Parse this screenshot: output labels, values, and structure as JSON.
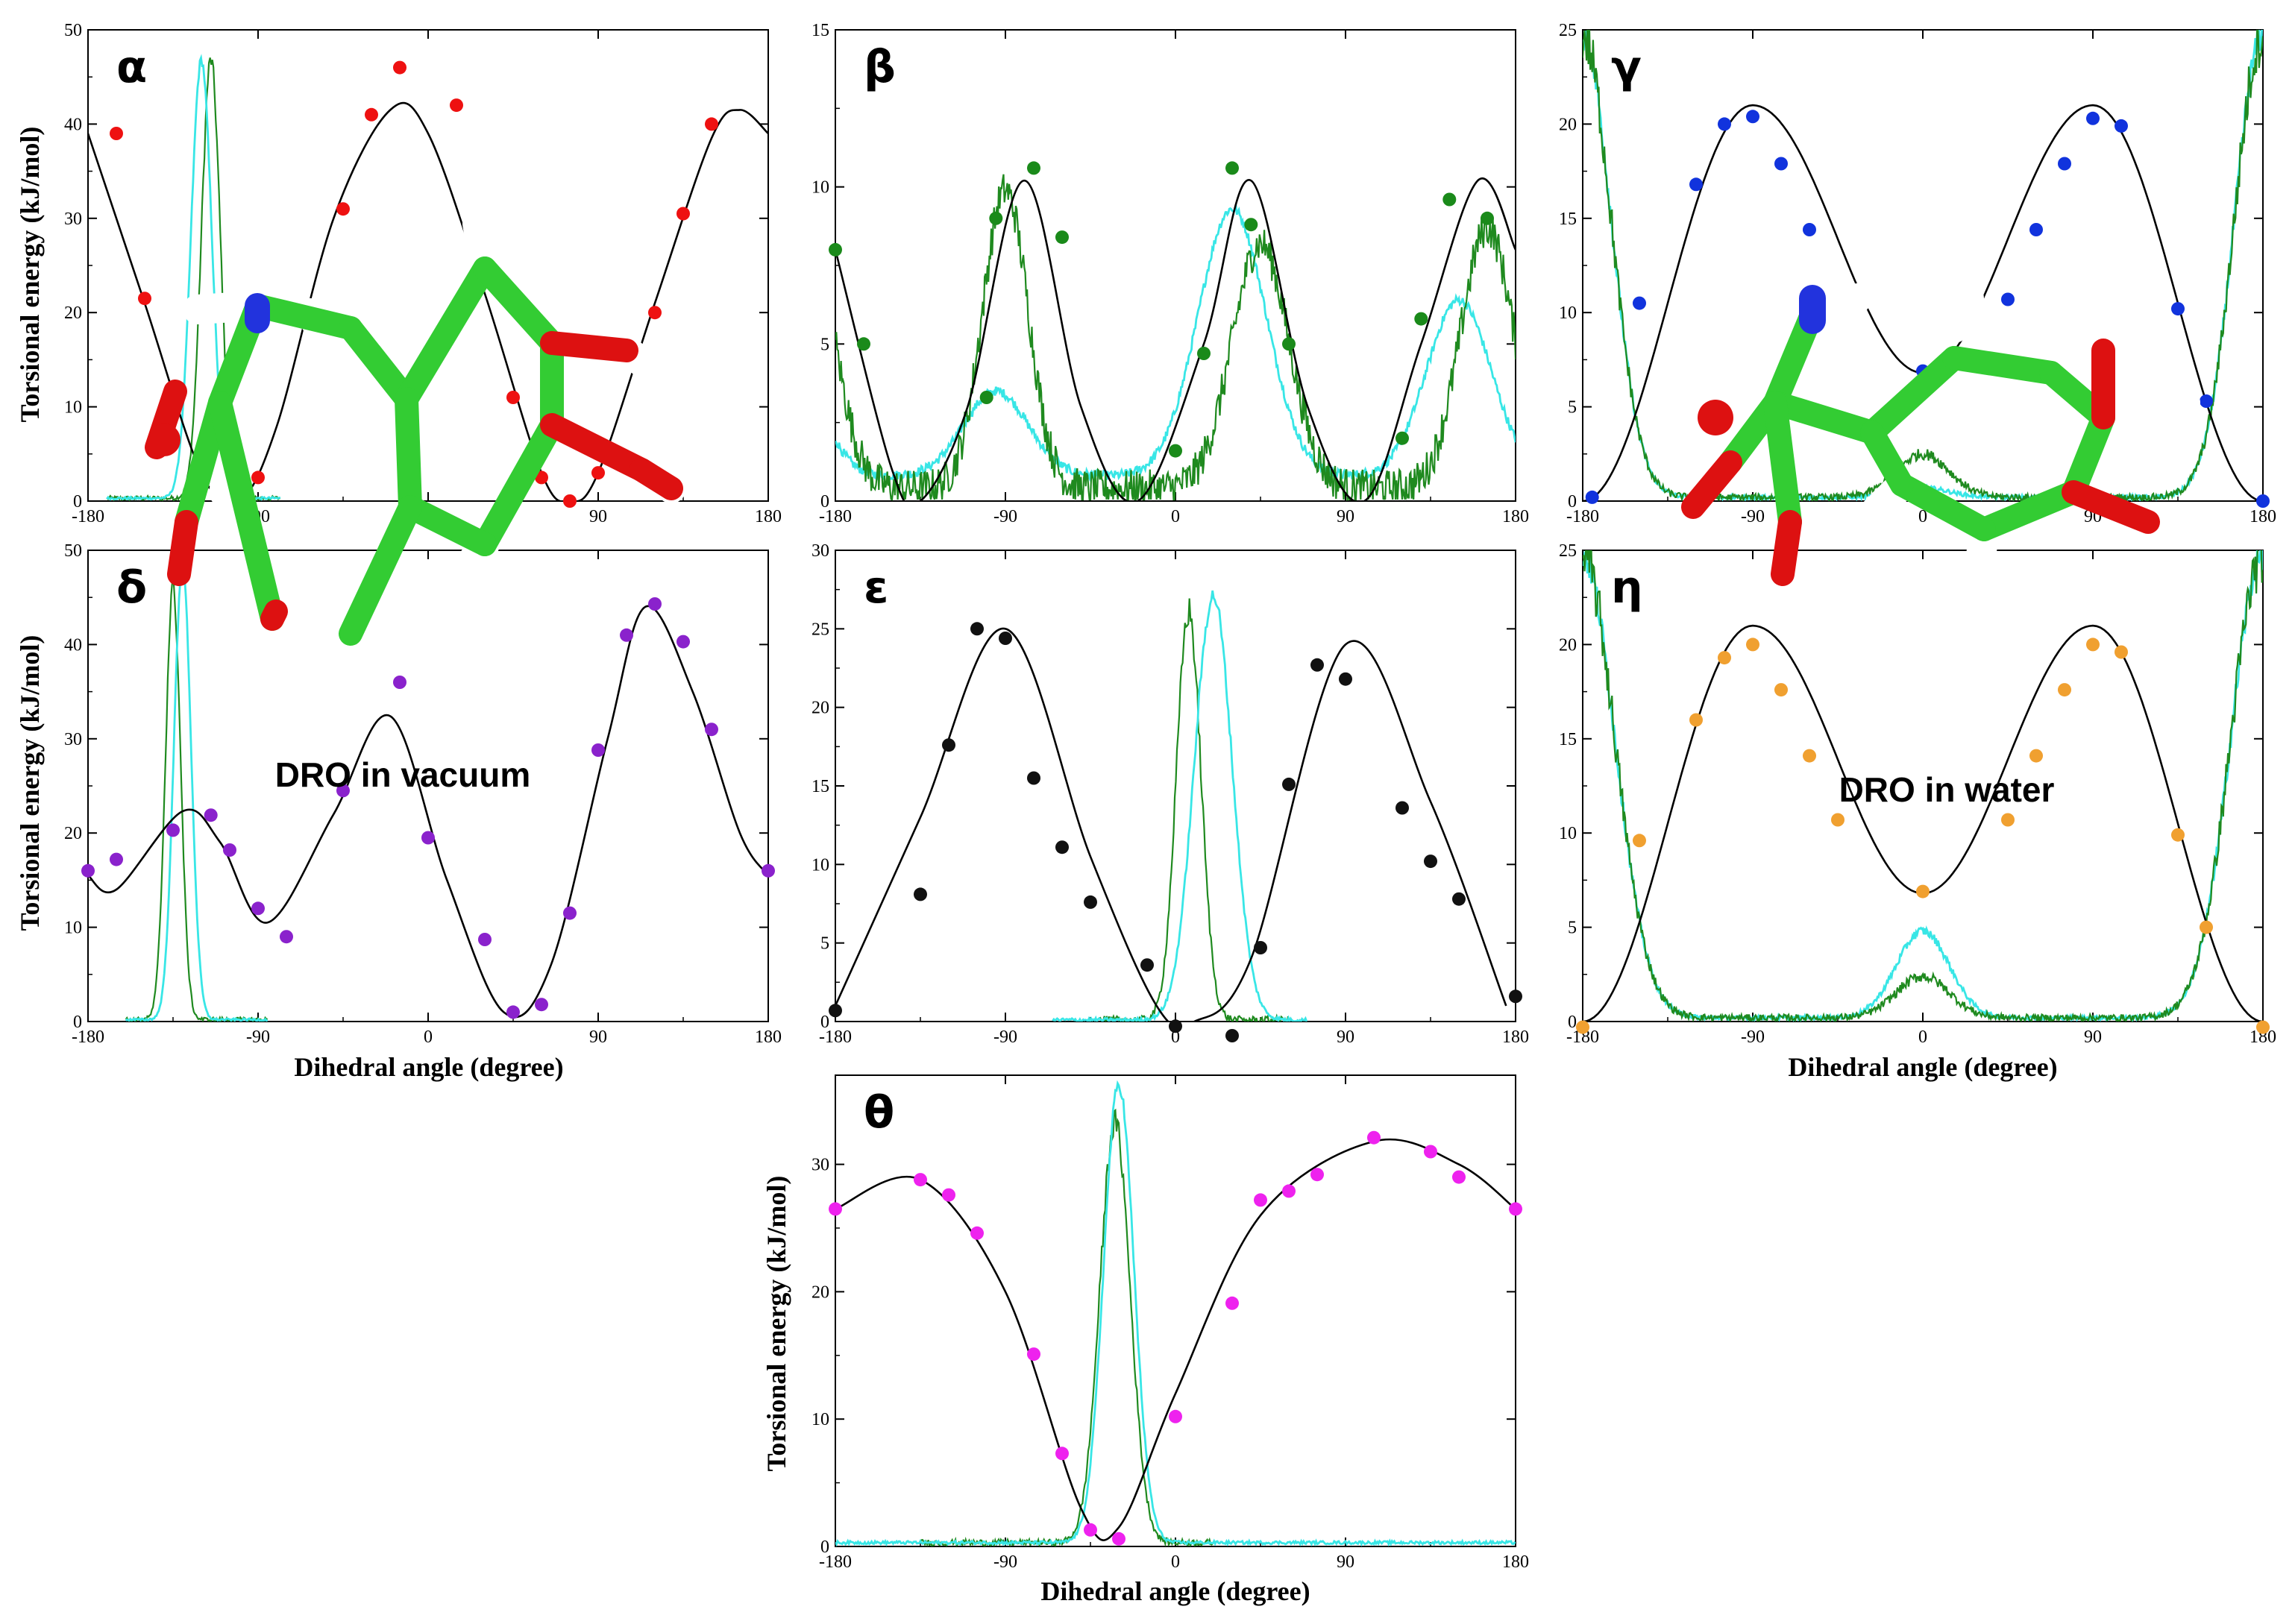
{
  "colors": {
    "fit": "#000000",
    "vacuum": "#1f8a1f",
    "water": "#38e6e6",
    "alpha_points": "#ee1111",
    "beta_points": "#1a8a1a",
    "gamma_points": "#1133dd",
    "delta_points": "#8a22cc",
    "epsilon_points": "#111111",
    "eta_points": "#f0a030",
    "theta_points": "#ee22ee"
  },
  "axis_labels": {
    "y": "Torsional energy (kJ/mol)",
    "x": "Dihedral angle (degree)"
  },
  "captions": {
    "vacuum": "DRO in vacuum",
    "water": "DRO in water"
  },
  "chart_data": [
    {
      "type": "line",
      "label": "α",
      "xlim": [
        -180,
        180
      ],
      "ylim": [
        0,
        50
      ],
      "xticks": [
        -180,
        -90,
        0,
        90,
        180
      ],
      "yticks": [
        0,
        10,
        20,
        30,
        40,
        50
      ],
      "point_color": "#ee1111",
      "points": [
        [
          -165,
          39
        ],
        [
          -150,
          21.5
        ],
        [
          -135,
          9.5
        ],
        [
          -120,
          2.5
        ],
        [
          -90,
          2.5
        ],
        [
          -60,
          19.5
        ],
        [
          -45,
          31
        ],
        [
          -30,
          41
        ],
        [
          -15,
          46
        ],
        [
          15,
          42
        ],
        [
          30,
          24.5
        ],
        [
          45,
          11
        ],
        [
          60,
          2.5
        ],
        [
          75,
          0
        ],
        [
          90,
          3
        ],
        [
          120,
          20
        ],
        [
          135,
          30.5
        ],
        [
          150,
          40
        ]
      ],
      "fit": [
        [
          -180,
          39
        ],
        [
          -150,
          21
        ],
        [
          -120,
          3
        ],
        [
          -100,
          0
        ],
        [
          -80,
          8
        ],
        [
          -50,
          30
        ],
        [
          -20,
          41.5
        ],
        [
          0,
          39
        ],
        [
          30,
          22
        ],
        [
          60,
          3
        ],
        [
          75,
          0
        ],
        [
          90,
          3
        ],
        [
          120,
          21
        ],
        [
          150,
          38.5
        ],
        [
          165,
          41.5
        ],
        [
          180,
          39
        ]
      ],
      "vacuum_peak": {
        "center": -115,
        "width": 5,
        "height": 46.5,
        "baseline": 0.3,
        "range": [
          -170,
          -78
        ]
      },
      "water_peak": {
        "center": -120,
        "width": 5.5,
        "height": 46.5,
        "baseline": 0.3,
        "range": [
          -170,
          -78
        ]
      }
    },
    {
      "type": "line",
      "label": "β",
      "xlim": [
        -180,
        180
      ],
      "ylim": [
        0,
        15
      ],
      "xticks": [
        -180,
        -90,
        0,
        90,
        180
      ],
      "yticks": [
        0,
        5,
        10,
        15
      ],
      "point_color": "#1a8a1a",
      "points": [
        [
          -180,
          8
        ],
        [
          -165,
          5
        ],
        [
          -100,
          3.3
        ],
        [
          -95,
          9
        ],
        [
          -75,
          10.6
        ],
        [
          -60,
          8.4
        ],
        [
          0,
          1.6
        ],
        [
          15,
          4.7
        ],
        [
          30,
          10.6
        ],
        [
          40,
          8.8
        ],
        [
          60,
          5
        ],
        [
          120,
          2
        ],
        [
          130,
          5.8
        ],
        [
          145,
          9.6
        ],
        [
          165,
          9
        ]
      ],
      "fit": [
        [
          -180,
          8
        ],
        [
          -150,
          1
        ],
        [
          -135,
          0
        ],
        [
          -110,
          3
        ],
        [
          -80,
          10.2
        ],
        [
          -50,
          3
        ],
        [
          -20,
          0
        ],
        [
          15,
          5
        ],
        [
          40,
          10.2
        ],
        [
          70,
          3
        ],
        [
          100,
          0
        ],
        [
          130,
          5
        ],
        [
          160,
          10.2
        ],
        [
          180,
          8
        ]
      ],
      "vacuum_bumps": [
        {
          "center": -90,
          "width": 12,
          "height": 9.5
        },
        {
          "center": 45,
          "width": 15,
          "height": 7.8
        },
        {
          "center": 165,
          "width": 14,
          "height": 8.3
        }
      ],
      "vacuum_baseline": 0.4,
      "vacuum_noise": 0.6,
      "water_bumps": [
        {
          "center": -95,
          "width": 17,
          "height": 2.7
        },
        {
          "center": 30,
          "width": 18,
          "height": 8.5
        },
        {
          "center": 150,
          "width": 17,
          "height": 5.6
        }
      ],
      "water_baseline": 0.8,
      "water_noise": 0.15
    },
    {
      "type": "line",
      "label": "γ",
      "xlim": [
        -180,
        180
      ],
      "ylim": [
        0,
        25
      ],
      "xticks": [
        -180,
        -90,
        0,
        90,
        180
      ],
      "yticks": [
        0,
        5,
        10,
        15,
        20,
        25
      ],
      "point_color": "#1133dd",
      "points": [
        [
          -175,
          0.2
        ],
        [
          -150,
          10.5
        ],
        [
          -120,
          16.8
        ],
        [
          -105,
          20
        ],
        [
          -90,
          20.4
        ],
        [
          -75,
          17.9
        ],
        [
          -60,
          14.4
        ],
        [
          -45,
          10.7
        ],
        [
          0,
          6.9
        ],
        [
          45,
          10.7
        ],
        [
          60,
          14.4
        ],
        [
          75,
          17.9
        ],
        [
          90,
          20.3
        ],
        [
          105,
          19.9
        ],
        [
          135,
          10.2
        ],
        [
          150,
          5.3
        ],
        [
          180,
          0
        ]
      ],
      "fit": [
        [
          -180,
          0
        ],
        [
          -90,
          21
        ],
        [
          0,
          6.8
        ],
        [
          90,
          21
        ],
        [
          180,
          0
        ]
      ],
      "gamma_type": true,
      "edges_height": 24.5,
      "edges_width": 15,
      "center_green": 2.3,
      "center_cyan": 0.5
    },
    {
      "type": "line",
      "label": "δ",
      "xlim": [
        -180,
        180
      ],
      "ylim": [
        0,
        50
      ],
      "xticks": [
        -180,
        -90,
        0,
        90,
        180
      ],
      "yticks": [
        0,
        10,
        20,
        30,
        40,
        50
      ],
      "point_color": "#8a22cc",
      "points": [
        [
          -180,
          16
        ],
        [
          -165,
          17.2
        ],
        [
          -135,
          20.3
        ],
        [
          -115,
          21.9
        ],
        [
          -105,
          18.2
        ],
        [
          -90,
          12
        ],
        [
          -75,
          9
        ],
        [
          -45,
          24.5
        ],
        [
          -15,
          36
        ],
        [
          0,
          19.5
        ],
        [
          30,
          8.7
        ],
        [
          45,
          1
        ],
        [
          60,
          1.8
        ],
        [
          75,
          11.5
        ],
        [
          90,
          28.8
        ],
        [
          105,
          41
        ],
        [
          120,
          44.3
        ],
        [
          135,
          40.3
        ],
        [
          150,
          31
        ],
        [
          180,
          16
        ]
      ],
      "fit": [
        [
          -180,
          15.5
        ],
        [
          -165,
          14
        ],
        [
          -130,
          22.3
        ],
        [
          -110,
          19
        ],
        [
          -85,
          10.5
        ],
        [
          -50,
          22
        ],
        [
          -20,
          32.4
        ],
        [
          10,
          15
        ],
        [
          40,
          1
        ],
        [
          65,
          6
        ],
        [
          95,
          30
        ],
        [
          115,
          44
        ],
        [
          140,
          35
        ],
        [
          165,
          20
        ],
        [
          180,
          15.5
        ]
      ],
      "vacuum_peak": {
        "center": -135,
        "width": 4,
        "height": 46,
        "baseline": 0.2,
        "range": [
          -160,
          -85
        ]
      },
      "water_peak": {
        "center": -130,
        "width": 4.5,
        "height": 48.5,
        "baseline": 0.2,
        "range": [
          -160,
          -85
        ]
      }
    },
    {
      "type": "line",
      "label": "ε",
      "xlim": [
        -180,
        180
      ],
      "ylim": [
        0,
        30
      ],
      "xticks": [
        -180,
        -90,
        0,
        90,
        180
      ],
      "yticks": [
        0,
        5,
        10,
        15,
        20,
        25,
        30
      ],
      "point_color": "#111111",
      "points": [
        [
          -180,
          0.7
        ],
        [
          -135,
          8.1
        ],
        [
          -120,
          17.6
        ],
        [
          -105,
          25
        ],
        [
          -90,
          24.4
        ],
        [
          -75,
          15.5
        ],
        [
          -60,
          11.1
        ],
        [
          -45,
          7.6
        ],
        [
          -15,
          3.6
        ],
        [
          0,
          -0.3
        ],
        [
          30,
          -0.9
        ],
        [
          45,
          4.7
        ],
        [
          60,
          15.1
        ],
        [
          75,
          22.7
        ],
        [
          90,
          21.8
        ],
        [
          120,
          13.6
        ],
        [
          135,
          10.2
        ],
        [
          150,
          7.8
        ],
        [
          180,
          1.6
        ]
      ],
      "fit": [
        [
          -180,
          1
        ],
        [
          -135,
          13
        ],
        [
          -90,
          25
        ],
        [
          -45,
          10.5
        ],
        [
          -10,
          1
        ],
        [
          10,
          0
        ],
        [
          40,
          4
        ],
        [
          90,
          24
        ],
        [
          135,
          14
        ],
        [
          175,
          1
        ]
      ],
      "vacuum_peak": {
        "center": 7,
        "width": 6.5,
        "height": 26,
        "baseline": 0.1,
        "range": [
          -40,
          60
        ]
      },
      "water_peak": {
        "center": 20,
        "width": 10,
        "height": 27,
        "baseline": 0.1,
        "range": [
          -65,
          70
        ]
      }
    },
    {
      "type": "line",
      "label": "η",
      "xlim": [
        -180,
        180
      ],
      "ylim": [
        0,
        25
      ],
      "xticks": [
        -180,
        -90,
        0,
        90,
        180
      ],
      "yticks": [
        0,
        5,
        10,
        15,
        20,
        25
      ],
      "point_color": "#f0a030",
      "points": [
        [
          -180,
          -0.3
        ],
        [
          -150,
          9.6
        ],
        [
          -120,
          16
        ],
        [
          -105,
          19.3
        ],
        [
          -90,
          20
        ],
        [
          -75,
          17.6
        ],
        [
          -60,
          14.1
        ],
        [
          -45,
          10.7
        ],
        [
          0,
          6.9
        ],
        [
          45,
          10.7
        ],
        [
          60,
          14.1
        ],
        [
          75,
          17.6
        ],
        [
          90,
          20
        ],
        [
          105,
          19.6
        ],
        [
          135,
          9.9
        ],
        [
          150,
          5
        ],
        [
          180,
          -0.3
        ]
      ],
      "fit": [
        [
          -180,
          0
        ],
        [
          -90,
          21
        ],
        [
          0,
          6.8
        ],
        [
          90,
          21
        ],
        [
          180,
          0
        ]
      ],
      "gamma_type": true,
      "edges_height": 24.5,
      "edges_width": 17,
      "center_green": 2.2,
      "center_cyan": 4.6
    },
    {
      "type": "line",
      "label": "θ",
      "xlim": [
        -180,
        180
      ],
      "ylim": [
        0,
        37
      ],
      "xticks": [
        -180,
        -90,
        0,
        90,
        180
      ],
      "yticks": [
        0,
        10,
        20,
        30
      ],
      "point_color": "#ee22ee",
      "points": [
        [
          -180,
          26.5
        ],
        [
          -135,
          28.8
        ],
        [
          -120,
          27.6
        ],
        [
          -105,
          24.6
        ],
        [
          -75,
          15.1
        ],
        [
          -60,
          7.3
        ],
        [
          -45,
          1.3
        ],
        [
          -30,
          0.6
        ],
        [
          0,
          10.2
        ],
        [
          30,
          19.1
        ],
        [
          45,
          27.2
        ],
        [
          60,
          27.9
        ],
        [
          75,
          29.2
        ],
        [
          105,
          32.1
        ],
        [
          135,
          31
        ],
        [
          150,
          29
        ],
        [
          180,
          26.5
        ]
      ],
      "fit": [
        [
          -180,
          26.5
        ],
        [
          -135,
          28.8
        ],
        [
          -90,
          20
        ],
        [
          -50,
          3
        ],
        [
          -30,
          1.5
        ],
        [
          0,
          12
        ],
        [
          45,
          26
        ],
        [
          105,
          31.8
        ],
        [
          150,
          30
        ],
        [
          180,
          26.5
        ]
      ],
      "vacuum_peak": {
        "center": -32,
        "width": 8,
        "height": 33,
        "baseline": 0.3,
        "range": [
          -135,
          20
        ]
      },
      "water_peak": {
        "center": -30,
        "width": 8,
        "height": 36,
        "baseline": 0.3,
        "range": [
          -180,
          180
        ]
      }
    }
  ]
}
